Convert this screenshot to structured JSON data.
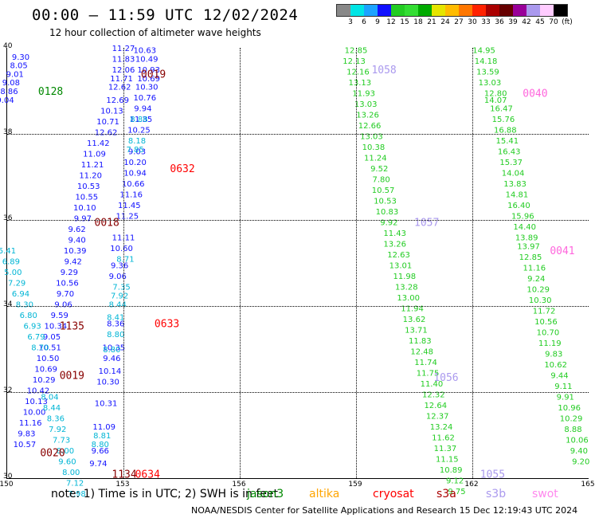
{
  "header": {
    "title": "00:00 – 11:59 UTC 12/02/2024",
    "subtitle": "12 hour collection of altimeter wave heights"
  },
  "legend": {
    "labels": [
      "3",
      "6",
      "9",
      "12",
      "15",
      "18",
      "21",
      "24",
      "27",
      "30",
      "33",
      "36",
      "39",
      "42",
      "45",
      "70",
      "(ft)"
    ],
    "colors": [
      "#888888",
      "#00e5e5",
      "#1ca3ff",
      "#1010ff",
      "#22cc22",
      "#33dd33",
      "#00aa00",
      "#e5e500",
      "#ffbb00",
      "#ff7700",
      "#ff2200",
      "#aa0000",
      "#660000",
      "#990099",
      "#aa99ee",
      "#ffccff",
      "#000000"
    ]
  },
  "map": {
    "lat_labels": [
      "40",
      "38",
      "36",
      "34",
      "32",
      "30"
    ],
    "lon_labels": [
      "150",
      "153",
      "156",
      "159",
      "162",
      "165"
    ],
    "time_labels": [
      {
        "text": "0128",
        "color": "#008800",
        "lon": 150.8,
        "lat": 39.0
      },
      {
        "text": "0019",
        "color": "#880000",
        "lon": 153.45,
        "lat": 39.4
      },
      {
        "text": "0632",
        "color": "#ff0000",
        "lon": 154.2,
        "lat": 37.2
      },
      {
        "text": "0018",
        "color": "#880000",
        "lon": 152.25,
        "lat": 35.95
      },
      {
        "text": "0633",
        "color": "#ff0000",
        "lon": 153.8,
        "lat": 33.6
      },
      {
        "text": "1135",
        "color": "#880000",
        "lon": 151.35,
        "lat": 33.55
      },
      {
        "text": "0019",
        "color": "#880000",
        "lon": 151.35,
        "lat": 32.4
      },
      {
        "text": "0020",
        "color": "#880000",
        "lon": 150.85,
        "lat": 30.6
      },
      {
        "text": "1134",
        "color": "#880000",
        "lon": 152.7,
        "lat": 30.1
      },
      {
        "text": "0634",
        "color": "#ff0000",
        "lon": 153.3,
        "lat": 30.1
      },
      {
        "text": "1058",
        "color": "#aa99ee",
        "lon": 159.4,
        "lat": 39.5
      },
      {
        "text": "1057",
        "color": "#aa99ee",
        "lon": 160.5,
        "lat": 35.95
      },
      {
        "text": "1056",
        "color": "#aa99ee",
        "lon": 161.0,
        "lat": 32.35
      },
      {
        "text": "1055",
        "color": "#aa99ee",
        "lon": 162.2,
        "lat": 30.1
      },
      {
        "text": "0040",
        "color": "#ff66dd",
        "lon": 163.3,
        "lat": 38.95
      },
      {
        "text": "0041",
        "color": "#ff66dd",
        "lon": 164.0,
        "lat": 35.3
      }
    ],
    "tracks": [
      {
        "color": "#1010ff",
        "pts": [
          [
            150.35,
            39.8,
            "9.30"
          ],
          [
            150.3,
            39.6,
            "8.05"
          ],
          [
            150.2,
            39.4,
            "9.01"
          ],
          [
            150.1,
            39.2,
            "9.08"
          ],
          [
            150.05,
            39.0,
            "8.86"
          ],
          [
            149.95,
            38.8,
            "9.04"
          ]
        ]
      },
      {
        "color": "#1010ff",
        "pts": [
          [
            153.0,
            40.0,
            "11.27"
          ],
          [
            153.0,
            39.75,
            "11.83"
          ],
          [
            153.0,
            39.5,
            "12.06"
          ],
          [
            152.95,
            39.3,
            "11.71"
          ],
          [
            152.9,
            39.1,
            "12.62"
          ],
          [
            152.85,
            38.8,
            "12.69"
          ],
          [
            152.7,
            38.55,
            "10.13"
          ],
          [
            152.6,
            38.3,
            "10.71"
          ],
          [
            152.55,
            38.05,
            "12.62"
          ],
          [
            152.35,
            37.8,
            "11.42"
          ],
          [
            152.25,
            37.55,
            "11.09"
          ],
          [
            152.2,
            37.3,
            "11.21"
          ],
          [
            152.15,
            37.05,
            "11.20"
          ],
          [
            152.1,
            36.8,
            "10.53"
          ],
          [
            152.05,
            36.55,
            "10.55"
          ],
          [
            152.0,
            36.3,
            "10.10"
          ],
          [
            151.95,
            36.05,
            "9.97"
          ],
          [
            151.8,
            35.8,
            "9.62"
          ],
          [
            151.8,
            35.55,
            "9.40"
          ],
          [
            151.75,
            35.3,
            "10.39"
          ],
          [
            151.7,
            35.05,
            "9.42"
          ],
          [
            151.6,
            34.8,
            "9.29"
          ],
          [
            151.55,
            34.55,
            "10.56"
          ],
          [
            151.5,
            34.3,
            "9.70"
          ],
          [
            151.45,
            34.05,
            "9.06"
          ],
          [
            151.35,
            33.8,
            "9.59"
          ],
          [
            151.25,
            33.55,
            "10.34"
          ],
          [
            151.15,
            33.3,
            "9.05"
          ],
          [
            151.1,
            33.05,
            "10.51"
          ],
          [
            151.05,
            32.8,
            "10.50"
          ],
          [
            151.0,
            32.55,
            "10.69"
          ],
          [
            150.95,
            32.3,
            "10.29"
          ],
          [
            150.8,
            32.05,
            "10.42"
          ],
          [
            150.75,
            31.8,
            "10.13"
          ],
          [
            150.7,
            31.55,
            "10.00"
          ],
          [
            150.6,
            31.3,
            "11.16"
          ],
          [
            150.5,
            31.05,
            "9.83"
          ],
          [
            150.45,
            30.8,
            "10.57"
          ]
        ]
      },
      {
        "color": "#22cc22",
        "pts": [
          [
            159.0,
            39.95,
            "12.85"
          ],
          [
            158.95,
            39.7,
            "12.13"
          ],
          [
            159.05,
            39.45,
            "12.16"
          ],
          [
            159.1,
            39.2,
            "13.13"
          ],
          [
            159.2,
            38.95,
            "11.93"
          ],
          [
            159.25,
            38.7,
            "13.03"
          ],
          [
            159.3,
            38.45,
            "13.26"
          ],
          [
            159.35,
            38.2,
            "12.66"
          ],
          [
            159.4,
            37.95,
            "13.03"
          ],
          [
            159.45,
            37.7,
            "10.38"
          ],
          [
            159.5,
            37.45,
            "11.24"
          ],
          [
            159.6,
            37.2,
            "9.52"
          ],
          [
            159.65,
            36.95,
            "7.80"
          ],
          [
            159.7,
            36.7,
            "10.57"
          ],
          [
            159.75,
            36.45,
            "10.53"
          ],
          [
            159.8,
            36.2,
            "10.83"
          ],
          [
            159.85,
            35.95,
            "9.92"
          ],
          [
            160.0,
            35.7,
            "11.43"
          ],
          [
            160.0,
            35.45,
            "13.26"
          ],
          [
            160.1,
            35.2,
            "12.63"
          ],
          [
            160.15,
            34.95,
            "13.01"
          ],
          [
            160.25,
            34.7,
            "11.98"
          ],
          [
            160.3,
            34.45,
            "13.28"
          ],
          [
            160.35,
            34.2,
            "13.00"
          ],
          [
            160.45,
            33.95,
            "11.94"
          ],
          [
            160.5,
            33.7,
            "13.62"
          ],
          [
            160.55,
            33.45,
            "13.71"
          ],
          [
            160.65,
            33.2,
            "11.83"
          ],
          [
            160.7,
            32.95,
            "12.48"
          ],
          [
            160.8,
            32.7,
            "11.74"
          ],
          [
            160.85,
            32.45,
            "11.75"
          ],
          [
            160.95,
            32.2,
            "11.40"
          ],
          [
            161.0,
            31.95,
            "12.32"
          ],
          [
            161.05,
            31.7,
            "12.64"
          ],
          [
            161.1,
            31.45,
            "12.37"
          ],
          [
            161.2,
            31.2,
            "13.24"
          ],
          [
            161.25,
            30.95,
            "11.62"
          ],
          [
            161.3,
            30.7,
            "11.37"
          ],
          [
            161.35,
            30.45,
            "11.15"
          ],
          [
            161.45,
            30.2,
            "10.89"
          ],
          [
            161.55,
            29.95,
            "9.12"
          ],
          [
            161.6,
            29.7,
            "9.75"
          ]
        ]
      },
      {
        "color": "#22cc22",
        "pts": [
          [
            162.3,
            39.95,
            "14.95"
          ],
          [
            162.35,
            39.7,
            "14.18"
          ],
          [
            162.4,
            39.45,
            "13.59"
          ],
          [
            162.45,
            39.2,
            "13.03"
          ],
          [
            162.6,
            38.95,
            "12.80"
          ],
          [
            162.6,
            38.8,
            "14.07"
          ],
          [
            162.75,
            38.6,
            "16.47"
          ],
          [
            162.8,
            38.35,
            "15.76"
          ],
          [
            162.85,
            38.1,
            "16.88"
          ],
          [
            162.9,
            37.85,
            "15.41"
          ],
          [
            162.95,
            37.6,
            "16.43"
          ],
          [
            163.0,
            37.35,
            "15.37"
          ],
          [
            163.05,
            37.1,
            "14.04"
          ],
          [
            163.1,
            36.85,
            "13.83"
          ],
          [
            163.15,
            36.6,
            "14.81"
          ],
          [
            163.2,
            36.35,
            "16.40"
          ],
          [
            163.3,
            36.1,
            "15.96"
          ],
          [
            163.35,
            35.85,
            "14.40"
          ],
          [
            163.4,
            35.6,
            "13.89"
          ],
          [
            163.45,
            35.4,
            "13.97"
          ],
          [
            163.5,
            35.15,
            "12.85"
          ],
          [
            163.6,
            34.9,
            "11.16"
          ],
          [
            163.65,
            34.65,
            "9.24"
          ],
          [
            163.7,
            34.4,
            "10.29"
          ],
          [
            163.75,
            34.15,
            "10.30"
          ],
          [
            163.85,
            33.9,
            "11.72"
          ],
          [
            163.9,
            33.65,
            "10.56"
          ],
          [
            163.95,
            33.4,
            "10.70"
          ],
          [
            164.0,
            33.15,
            "11.19"
          ],
          [
            164.1,
            32.9,
            "9.83"
          ],
          [
            164.15,
            32.65,
            "10.62"
          ],
          [
            164.25,
            32.4,
            "9.44"
          ],
          [
            164.35,
            32.15,
            "9.11"
          ],
          [
            164.4,
            31.9,
            "9.91"
          ],
          [
            164.5,
            31.65,
            "10.96"
          ],
          [
            164.55,
            31.4,
            "10.29"
          ],
          [
            164.6,
            31.15,
            "8.88"
          ],
          [
            164.7,
            30.9,
            "10.06"
          ],
          [
            164.75,
            30.65,
            "9.40"
          ],
          [
            164.8,
            30.4,
            "9.20"
          ]
        ]
      },
      {
        "color": "#00b5d5",
        "pts": [
          [
            150.0,
            35.3,
            "5.41"
          ],
          [
            150.1,
            35.05,
            "6.89"
          ],
          [
            150.15,
            34.8,
            "5.00"
          ],
          [
            150.25,
            34.55,
            "7.29"
          ],
          [
            150.35,
            34.3,
            "6.94"
          ],
          [
            150.45,
            34.05,
            "8.30"
          ],
          [
            150.55,
            33.8,
            "6.80"
          ],
          [
            150.65,
            33.55,
            "6.93"
          ],
          [
            150.75,
            33.3,
            "6.79"
          ],
          [
            150.85,
            33.05,
            "8.70"
          ],
          [
            151.1,
            31.9,
            "8.04"
          ],
          [
            151.15,
            31.65,
            "8.44"
          ],
          [
            151.25,
            31.4,
            "8.36"
          ],
          [
            151.3,
            31.15,
            "7.92"
          ],
          [
            151.4,
            30.9,
            "7.73"
          ],
          [
            151.5,
            30.65,
            "8.00"
          ],
          [
            151.55,
            30.4,
            "9.60"
          ],
          [
            151.65,
            30.15,
            "8.00"
          ],
          [
            151.75,
            29.9,
            "7.12"
          ],
          [
            151.8,
            29.65,
            "7.98"
          ]
        ]
      },
      {
        "color": "#1010ff",
        "pts": [
          [
            153.55,
            39.95,
            "10.63"
          ],
          [
            153.6,
            39.75,
            "10.49"
          ],
          [
            153.65,
            39.5,
            "10.93"
          ],
          [
            153.65,
            39.3,
            "10.69"
          ],
          [
            153.6,
            39.1,
            "10.30"
          ],
          [
            153.55,
            38.85,
            "10.76"
          ],
          [
            153.5,
            38.6,
            "9.94"
          ],
          [
            153.45,
            38.35,
            "11.35"
          ],
          [
            153.4,
            38.1,
            "10.25"
          ],
          [
            153.35,
            37.6,
            "9.03"
          ],
          [
            153.3,
            37.35,
            "10.20"
          ],
          [
            153.3,
            37.1,
            "10.94"
          ],
          [
            153.25,
            36.85,
            "10.66"
          ],
          [
            153.2,
            36.6,
            "11.16"
          ],
          [
            153.15,
            36.35,
            "11.45"
          ],
          [
            153.1,
            36.1,
            "11.25"
          ],
          [
            153.0,
            35.6,
            "11.11"
          ],
          [
            152.95,
            35.35,
            "10.60"
          ],
          [
            152.9,
            34.95,
            "9.36"
          ],
          [
            152.85,
            34.7,
            "9.06"
          ],
          [
            152.8,
            33.6,
            "8.36"
          ],
          [
            152.75,
            33.05,
            "10.35"
          ],
          [
            152.7,
            32.8,
            "9.46"
          ],
          [
            152.65,
            32.5,
            "10.14"
          ],
          [
            152.6,
            32.25,
            "10.30"
          ],
          [
            152.55,
            31.75,
            "10.31"
          ],
          [
            152.5,
            31.2,
            "11.09"
          ],
          [
            152.4,
            30.65,
            "9.66"
          ],
          [
            152.35,
            30.35,
            "9.74"
          ]
        ]
      },
      {
        "color": "#00b5d5",
        "pts": [
          [
            153.4,
            38.35,
            "8.88"
          ],
          [
            153.35,
            37.85,
            "8.18"
          ],
          [
            153.3,
            37.65,
            "7.85"
          ],
          [
            153.05,
            35.1,
            "8.71"
          ],
          [
            152.95,
            34.45,
            "7.35"
          ],
          [
            152.9,
            34.25,
            "7.92"
          ],
          [
            152.85,
            34.05,
            "8.44"
          ],
          [
            152.8,
            33.75,
            "8.41"
          ],
          [
            152.8,
            33.35,
            "8.80"
          ],
          [
            152.7,
            33.0,
            "8.80"
          ],
          [
            152.45,
            31.0,
            "8.81"
          ],
          [
            152.4,
            30.8,
            "8.80"
          ]
        ]
      }
    ]
  },
  "footer": {
    "note": "note:  1) Time is in UTC;  2) SWH is in feet",
    "satellites": [
      {
        "name": "jason3",
        "color": "#008800"
      },
      {
        "name": "altika",
        "color": "#ffa500"
      },
      {
        "name": "cryosat",
        "color": "#ff0000"
      },
      {
        "name": "s3a",
        "color": "#aa0000"
      },
      {
        "name": "s3b",
        "color": "#aa99ee"
      },
      {
        "name": "swot",
        "color": "#ff88ee"
      }
    ],
    "credit": "NOAA/NESDIS Center for Satellite Applications and Research     15 Dec 12:19:43 UTC 2024"
  }
}
